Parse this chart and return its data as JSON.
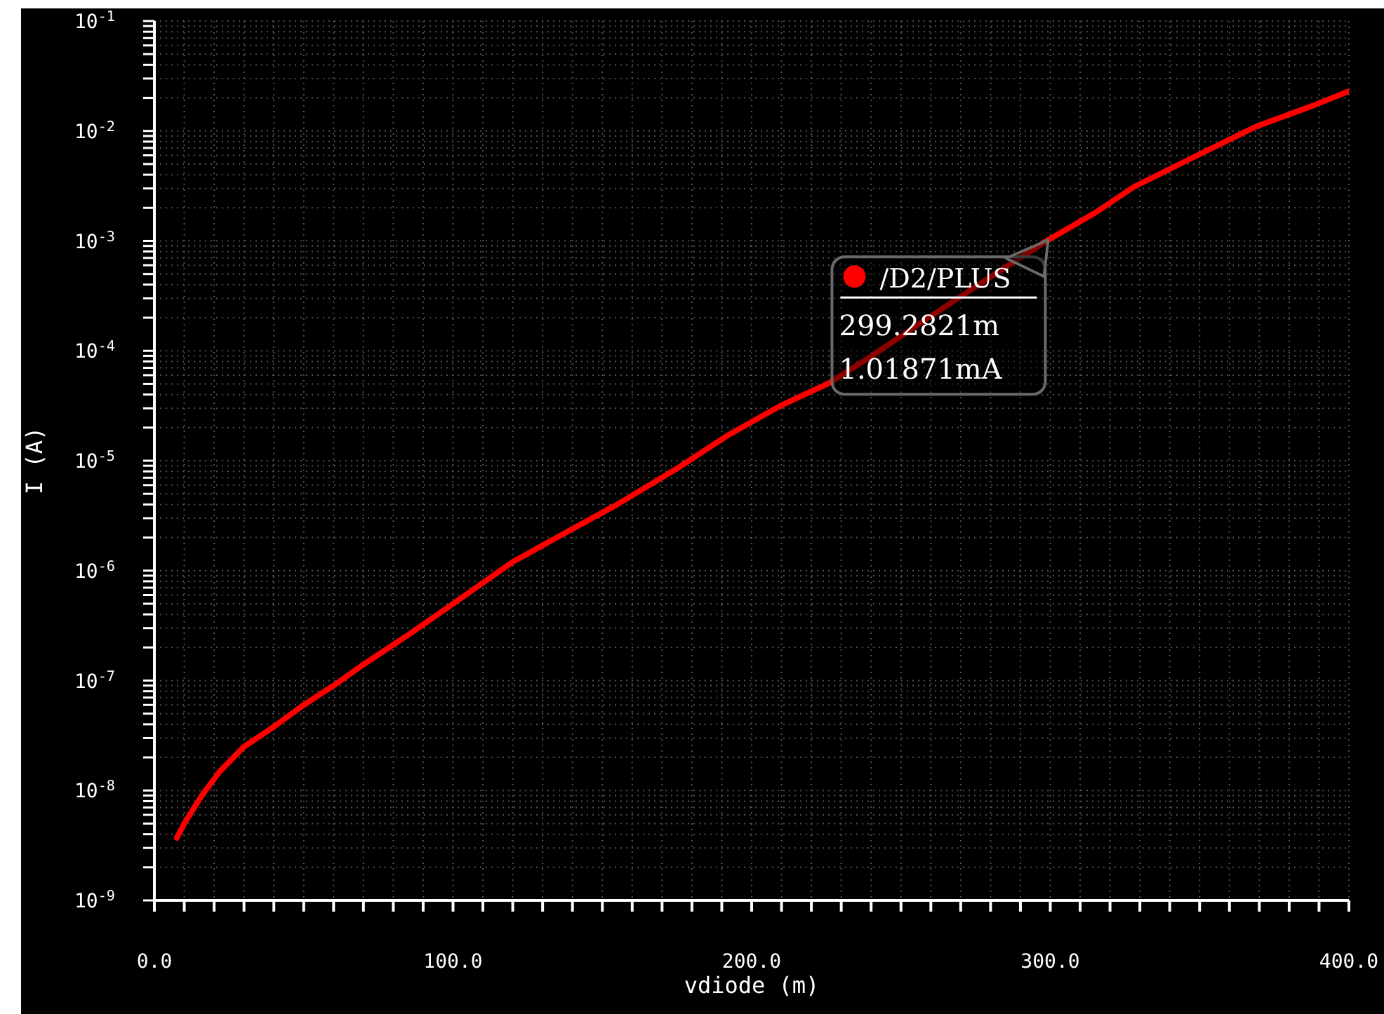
{
  "chart_data": {
    "type": "line",
    "xlabel": "vdiode (m)",
    "ylabel": "I (A)",
    "series": [
      {
        "name": "/D2/PLUS",
        "color": "#ff0000",
        "x": [
          7.5,
          10,
          16,
          22,
          30,
          40,
          50,
          60,
          70,
          85,
          100,
          120,
          140,
          155,
          175,
          192,
          210,
          226,
          240,
          258,
          280,
          299.2821,
          315,
          328,
          347,
          369,
          388,
          400
        ],
        "values": [
          3.7e-09,
          5e-09,
          9.1e-09,
          1.5e-08,
          2.5e-08,
          3.8e-08,
          6e-08,
          9e-08,
          1.4e-07,
          2.6e-07,
          5e-07,
          1.2e-06,
          2.4e-06,
          4e-06,
          8.5e-06,
          1.7e-05,
          3.2e-05,
          5.1e-05,
          8.9e-05,
          0.00019,
          0.00047,
          0.00101871,
          0.0018,
          0.0031,
          0.0056,
          0.011,
          0.017,
          0.023
        ]
      }
    ],
    "xlim": [
      0,
      400
    ],
    "xticks": [
      {
        "value": 0,
        "label": "0.0"
      },
      {
        "value": 10,
        "label": null
      },
      {
        "value": 20,
        "label": null
      },
      {
        "value": 30,
        "label": null
      },
      {
        "value": 40,
        "label": null
      },
      {
        "value": 50,
        "label": null
      },
      {
        "value": 60,
        "label": null
      },
      {
        "value": 70,
        "label": null
      },
      {
        "value": 80,
        "label": null
      },
      {
        "value": 90,
        "label": null
      },
      {
        "value": 100,
        "label": "100.0"
      },
      {
        "value": 110,
        "label": null
      },
      {
        "value": 120,
        "label": null
      },
      {
        "value": 130,
        "label": null
      },
      {
        "value": 140,
        "label": null
      },
      {
        "value": 150,
        "label": null
      },
      {
        "value": 160,
        "label": null
      },
      {
        "value": 170,
        "label": null
      },
      {
        "value": 180,
        "label": null
      },
      {
        "value": 190,
        "label": null
      },
      {
        "value": 200,
        "label": "200.0"
      },
      {
        "value": 210,
        "label": null
      },
      {
        "value": 220,
        "label": null
      },
      {
        "value": 230,
        "label": null
      },
      {
        "value": 240,
        "label": null
      },
      {
        "value": 250,
        "label": null
      },
      {
        "value": 260,
        "label": null
      },
      {
        "value": 270,
        "label": null
      },
      {
        "value": 280,
        "label": null
      },
      {
        "value": 290,
        "label": null
      },
      {
        "value": 300,
        "label": "300.0"
      },
      {
        "value": 310,
        "label": null
      },
      {
        "value": 320,
        "label": null
      },
      {
        "value": 330,
        "label": null
      },
      {
        "value": 340,
        "label": null
      },
      {
        "value": 350,
        "label": null
      },
      {
        "value": 360,
        "label": null
      },
      {
        "value": 370,
        "label": null
      },
      {
        "value": 380,
        "label": null
      },
      {
        "value": 390,
        "label": null
      },
      {
        "value": 400,
        "label": "400.0"
      }
    ],
    "ylim": [
      1e-09,
      0.1
    ],
    "yticks": [
      {
        "value": 1e-09,
        "label": "10$^{-9}$"
      },
      {
        "value": 2e-09,
        "label": null
      },
      {
        "value": 3e-09,
        "label": null
      },
      {
        "value": 4e-09,
        "label": null
      },
      {
        "value": 5e-09,
        "label": null
      },
      {
        "value": 6e-09,
        "label": null
      },
      {
        "value": 7e-09,
        "label": null
      },
      {
        "value": 8e-09,
        "label": null
      },
      {
        "value": 9e-09,
        "label": null
      },
      {
        "value": 1e-08,
        "label": "10$^{-8}$"
      },
      {
        "value": 2e-08,
        "label": null
      },
      {
        "value": 3e-08,
        "label": null
      },
      {
        "value": 4e-08,
        "label": null
      },
      {
        "value": 5e-08,
        "label": null
      },
      {
        "value": 6e-08,
        "label": null
      },
      {
        "value": 7e-08,
        "label": null
      },
      {
        "value": 8e-08,
        "label": null
      },
      {
        "value": 9e-08,
        "label": null
      },
      {
        "value": 1e-07,
        "label": "10$^{-7}$"
      },
      {
        "value": 2e-07,
        "label": null
      },
      {
        "value": 3e-07,
        "label": null
      },
      {
        "value": 4e-07,
        "label": null
      },
      {
        "value": 5e-07,
        "label": null
      },
      {
        "value": 6e-07,
        "label": null
      },
      {
        "value": 7e-07,
        "label": null
      },
      {
        "value": 8e-07,
        "label": null
      },
      {
        "value": 9e-07,
        "label": null
      },
      {
        "value": 1e-06,
        "label": "10$^{-6}$"
      },
      {
        "value": 2e-06,
        "label": null
      },
      {
        "value": 3e-06,
        "label": null
      },
      {
        "value": 4e-06,
        "label": null
      },
      {
        "value": 5e-06,
        "label": null
      },
      {
        "value": 6e-06,
        "label": null
      },
      {
        "value": 7e-06,
        "label": null
      },
      {
        "value": 8e-06,
        "label": null
      },
      {
        "value": 9e-06,
        "label": null
      },
      {
        "value": 1e-05,
        "label": "10$^{-5}$"
      },
      {
        "value": 2e-05,
        "label": null
      },
      {
        "value": 3e-05,
        "label": null
      },
      {
        "value": 4e-05,
        "label": null
      },
      {
        "value": 5e-05,
        "label": null
      },
      {
        "value": 6e-05,
        "label": null
      },
      {
        "value": 7e-05,
        "label": null
      },
      {
        "value": 8e-05,
        "label": null
      },
      {
        "value": 9e-05,
        "label": null
      },
      {
        "value": 0.0001,
        "label": "10$^{-4}$"
      },
      {
        "value": 0.0002,
        "label": null
      },
      {
        "value": 0.0003,
        "label": null
      },
      {
        "value": 0.0004,
        "label": null
      },
      {
        "value": 0.0005,
        "label": null
      },
      {
        "value": 0.0006,
        "label": null
      },
      {
        "value": 0.0007,
        "label": null
      },
      {
        "value": 0.0008,
        "label": null
      },
      {
        "value": 0.0009,
        "label": null
      },
      {
        "value": 0.001,
        "label": "10$^{-3}$"
      },
      {
        "value": 0.002,
        "label": null
      },
      {
        "value": 0.003,
        "label": null
      },
      {
        "value": 0.004,
        "label": null
      },
      {
        "value": 0.005,
        "label": null
      },
      {
        "value": 0.006,
        "label": null
      },
      {
        "value": 0.007,
        "label": null
      },
      {
        "value": 0.008,
        "label": null
      },
      {
        "value": 0.009,
        "label": null
      },
      {
        "value": 0.01,
        "label": "10$^{-2}$"
      },
      {
        "value": 0.02,
        "label": null
      },
      {
        "value": 0.03,
        "label": null
      },
      {
        "value": 0.04,
        "label": null
      },
      {
        "value": 0.05,
        "label": null
      },
      {
        "value": 0.06,
        "label": null
      },
      {
        "value": 0.07,
        "label": null
      },
      {
        "value": 0.08,
        "label": null
      },
      {
        "value": 0.09,
        "label": null
      },
      {
        "value": 0.1,
        "label": "10$^{-1}$"
      }
    ],
    "log": "y",
    "grid": true,
    "annotations": [
      {
        "text": "299.2821m",
        "x": 299.2821,
        "y": 0.00101871
      },
      "1.01871mA"
    ]
  }
}
